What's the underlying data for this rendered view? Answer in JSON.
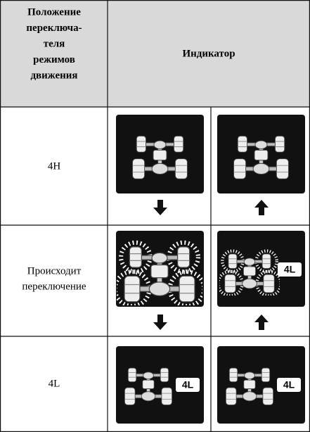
{
  "table": {
    "header": {
      "position_lines": [
        "Положение",
        "переключа-",
        "теля",
        "режимов",
        "движения"
      ],
      "indicator": "Индикатор"
    },
    "rows": [
      {
        "label_lines": [
          "4H"
        ],
        "right_badge": null
      },
      {
        "label_lines": [
          "Происходит",
          "переключение"
        ],
        "right_badge": "4L"
      },
      {
        "label_lines": [
          "4L"
        ],
        "left_badge": "4L",
        "right_badge": "4L"
      }
    ]
  }
}
